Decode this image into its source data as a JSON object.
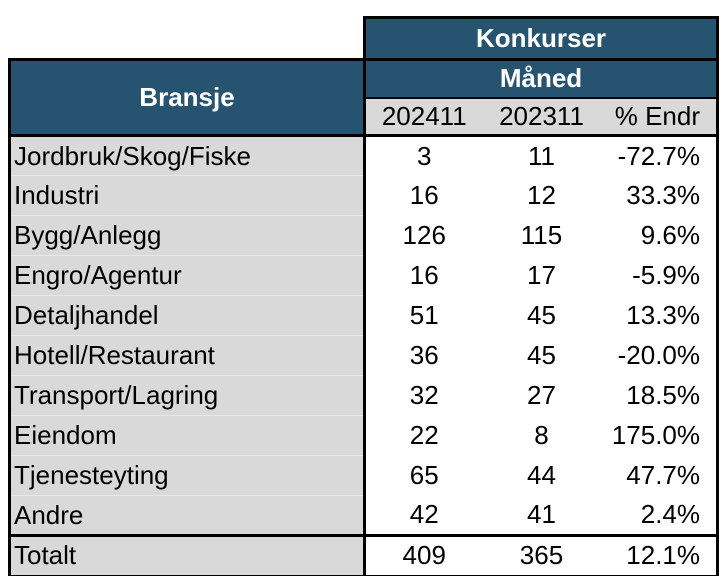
{
  "colors": {
    "header_blue": "#26536F",
    "label_gray": "#D9D9D9",
    "border_black": "#000000",
    "header_text": "#ffffff"
  },
  "table": {
    "title": "Konkurser",
    "group_header": "Måned",
    "row_header": "Bransje",
    "columns": [
      "202411",
      "202311",
      "% Endr"
    ],
    "rows": [
      {
        "bransje": "Jordbruk/Skog/Fiske",
        "m202411": "3",
        "m202311": "11",
        "endr": "-72.7%"
      },
      {
        "bransje": "Industri",
        "m202411": "16",
        "m202311": "12",
        "endr": "33.3%"
      },
      {
        "bransje": "Bygg/Anlegg",
        "m202411": "126",
        "m202311": "115",
        "endr": "9.6%"
      },
      {
        "bransje": "Engro/Agentur",
        "m202411": "16",
        "m202311": "17",
        "endr": "-5.9%"
      },
      {
        "bransje": "Detaljhandel",
        "m202411": "51",
        "m202311": "45",
        "endr": "13.3%"
      },
      {
        "bransje": "Hotell/Restaurant",
        "m202411": "36",
        "m202311": "45",
        "endr": "-20.0%"
      },
      {
        "bransje": "Transport/Lagring",
        "m202411": "32",
        "m202311": "27",
        "endr": "18.5%"
      },
      {
        "bransje": "Eiendom",
        "m202411": "22",
        "m202311": "8",
        "endr": "175.0%"
      },
      {
        "bransje": "Tjenesteyting",
        "m202411": "65",
        "m202311": "44",
        "endr": "47.7%"
      },
      {
        "bransje": "Andre",
        "m202411": "42",
        "m202311": "41",
        "endr": "2.4%"
      }
    ],
    "total": {
      "bransje": "Totalt",
      "m202411": "409",
      "m202311": "365",
      "endr": "12.1%"
    }
  },
  "chart_data": {
    "type": "table",
    "title": "Konkurser",
    "group_header": "Måned",
    "columns": [
      "Bransje",
      "202411",
      "202311",
      "% Endr"
    ],
    "rows": [
      [
        "Jordbruk/Skog/Fiske",
        3,
        11,
        "-72.7%"
      ],
      [
        "Industri",
        16,
        12,
        "33.3%"
      ],
      [
        "Bygg/Anlegg",
        126,
        115,
        "9.6%"
      ],
      [
        "Engro/Agentur",
        16,
        17,
        "-5.9%"
      ],
      [
        "Detaljhandel",
        51,
        45,
        "13.3%"
      ],
      [
        "Hotell/Restaurant",
        36,
        45,
        "-20.0%"
      ],
      [
        "Transport/Lagring",
        32,
        27,
        "18.5%"
      ],
      [
        "Eiendom",
        22,
        8,
        "175.0%"
      ],
      [
        "Tjenesteyting",
        65,
        44,
        "47.7%"
      ],
      [
        "Andre",
        42,
        41,
        "2.4%"
      ],
      [
        "Totalt",
        409,
        365,
        "12.1%"
      ]
    ]
  }
}
